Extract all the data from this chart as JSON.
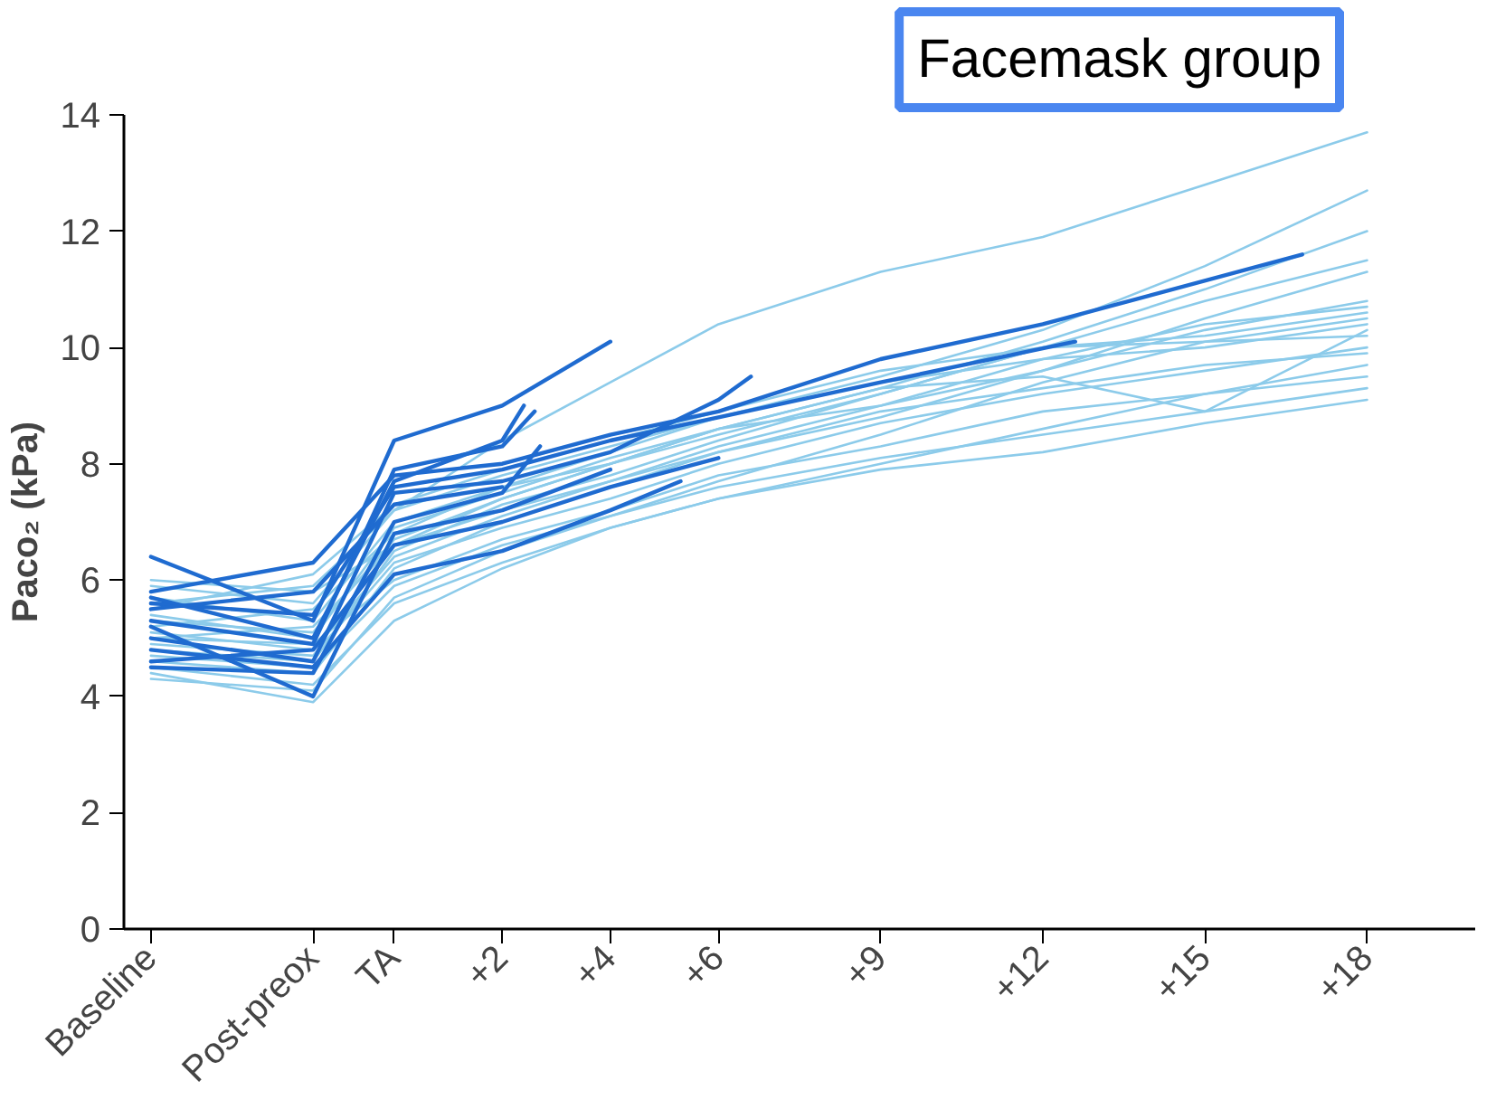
{
  "chart_data": {
    "type": "line",
    "title": "Facemask group",
    "ylabel": "Paco₂ (kPa)",
    "x": [
      -4.5,
      -1.5,
      0,
      2,
      4,
      6,
      9,
      12,
      15,
      18
    ],
    "xlim": [
      -5,
      20
    ],
    "ylim": [
      0,
      14
    ],
    "yticks": [
      0,
      2,
      4,
      6,
      8,
      10,
      12,
      14
    ],
    "xticks": [
      {
        "value": -4.5,
        "label": "Baseline"
      },
      {
        "value": -1.5,
        "label": "Post-preox"
      },
      {
        "value": 0,
        "label": "TA"
      },
      {
        "value": 2,
        "label": "+2"
      },
      {
        "value": 4,
        "label": "+4"
      },
      {
        "value": 6,
        "label": "+6"
      },
      {
        "value": 9,
        "label": "+9"
      },
      {
        "value": 12,
        "label": "+12"
      },
      {
        "value": 15,
        "label": "+15"
      },
      {
        "value": 18,
        "label": "+18"
      }
    ],
    "grid": false,
    "marker": "none",
    "line_style": "solid",
    "series": [
      {
        "color": "#8ccbea",
        "values": [
          5.6,
          5.9,
          7.2,
          8.4,
          9.4,
          10.4,
          11.3,
          11.9,
          12.8,
          13.7
        ]
      },
      {
        "color": "#8ccbea",
        "values": [
          5.2,
          5.5,
          6.8,
          7.6,
          8.2,
          8.8,
          9.5,
          10.3,
          11.4,
          12.7
        ]
      },
      {
        "color": "#8ccbea",
        "values": [
          5.0,
          5.2,
          6.6,
          7.4,
          8.0,
          8.6,
          9.3,
          10.1,
          11.0,
          12.0
        ]
      },
      {
        "color": "#8ccbea",
        "values": [
          4.8,
          4.6,
          6.5,
          7.3,
          7.8,
          8.4,
          9.2,
          10.0,
          10.8,
          11.5
        ]
      },
      {
        "color": "#8ccbea",
        "values": [
          5.4,
          5.0,
          6.9,
          7.5,
          8.1,
          8.6,
          9.0,
          9.6,
          10.5,
          11.3
        ]
      },
      {
        "color": "#8ccbea",
        "values": [
          4.6,
          4.4,
          6.2,
          7.0,
          7.6,
          8.2,
          8.8,
          9.6,
          10.3,
          10.8
        ]
      },
      {
        "color": "#8ccbea",
        "values": [
          5.1,
          4.8,
          6.4,
          7.1,
          7.7,
          8.3,
          9.0,
          9.8,
          10.4,
          10.7
        ]
      },
      {
        "color": "#8ccbea",
        "values": [
          5.7,
          5.3,
          7.0,
          7.6,
          8.0,
          8.5,
          9.2,
          10.0,
          10.2,
          10.6
        ]
      },
      {
        "color": "#8ccbea",
        "values": [
          4.3,
          4.1,
          5.7,
          6.5,
          7.1,
          7.7,
          8.5,
          9.4,
          10.1,
          10.5
        ]
      },
      {
        "color": "#8ccbea",
        "values": [
          5.9,
          5.6,
          7.2,
          7.8,
          8.3,
          8.8,
          9.4,
          9.8,
          10.0,
          10.4
        ]
      },
      {
        "color": "#8ccbea",
        "values": [
          5.3,
          5.1,
          6.7,
          7.4,
          8.0,
          8.6,
          9.3,
          9.5,
          8.9,
          10.3
        ]
      },
      {
        "color": "#8ccbea",
        "values": [
          4.9,
          4.7,
          6.3,
          6.9,
          7.4,
          8.0,
          8.7,
          9.2,
          9.6,
          10.0
        ]
      },
      {
        "color": "#8ccbea",
        "values": [
          4.4,
          3.9,
          5.3,
          6.2,
          6.9,
          7.4,
          8.0,
          8.6,
          9.2,
          9.7
        ]
      },
      {
        "color": "#8ccbea",
        "values": [
          5.0,
          4.9,
          6.0,
          6.7,
          7.2,
          7.8,
          8.3,
          8.9,
          9.2,
          9.5
        ]
      },
      {
        "color": "#8ccbea",
        "values": [
          4.7,
          4.5,
          5.9,
          6.6,
          7.1,
          7.6,
          8.1,
          8.5,
          8.9,
          9.3
        ]
      },
      {
        "color": "#8ccbea",
        "values": [
          4.5,
          4.2,
          5.6,
          6.3,
          6.9,
          7.4,
          7.9,
          8.2,
          8.7,
          9.1
        ]
      },
      {
        "color": "#8ccbea",
        "values": [
          5.5,
          6.1,
          7.3,
          7.9,
          8.4,
          8.9,
          9.6,
          10.0,
          10.1,
          10.2
        ]
      },
      {
        "color": "#8ccbea",
        "values": [
          6.0,
          5.8,
          6.6,
          7.2,
          7.7,
          8.2,
          8.9,
          9.3,
          9.7,
          9.9
        ]
      },
      {
        "color": "#1f6bd0",
        "x": [
          -4.5,
          -1.5,
          0,
          2,
          4
        ],
        "values": [
          6.4,
          5.3,
          8.4,
          9.0,
          10.1
        ]
      },
      {
        "color": "#1f6bd0",
        "x": [
          -4.5,
          -1.5,
          0,
          2,
          4,
          6,
          9,
          12.6
        ],
        "values": [
          5.6,
          5.4,
          7.6,
          7.9,
          8.4,
          8.8,
          9.4,
          10.1
        ]
      },
      {
        "color": "#1f6bd0",
        "x": [
          -4.5,
          -1.5,
          0,
          2,
          4,
          6,
          9,
          12,
          16.8
        ],
        "values": [
          5.8,
          6.3,
          7.8,
          8.0,
          8.5,
          8.9,
          9.8,
          10.4,
          11.6
        ]
      },
      {
        "color": "#1f6bd0",
        "x": [
          -4.5,
          -1.5,
          0,
          2,
          4,
          6,
          6.6
        ],
        "values": [
          5.0,
          4.6,
          7.5,
          7.7,
          8.2,
          9.1,
          9.5
        ]
      },
      {
        "color": "#1f6bd0",
        "x": [
          -4.5,
          -1.5,
          0,
          2,
          4,
          5.3
        ],
        "values": [
          4.8,
          4.5,
          6.1,
          6.5,
          7.2,
          7.7
        ]
      },
      {
        "color": "#1f6bd0",
        "x": [
          -4.5,
          -1.5,
          0,
          2,
          2.6
        ],
        "values": [
          5.3,
          4.9,
          7.9,
          8.3,
          8.9
        ]
      },
      {
        "color": "#1f6bd0",
        "x": [
          -4.5,
          -1.5,
          0,
          2,
          2.4
        ],
        "values": [
          5.7,
          5.0,
          7.7,
          8.4,
          9.0
        ]
      },
      {
        "color": "#1f6bd0",
        "x": [
          -4.5,
          -1.5,
          0,
          2,
          2.7
        ],
        "values": [
          4.5,
          4.4,
          7.0,
          7.5,
          8.3
        ]
      },
      {
        "color": "#1f6bd0",
        "x": [
          -4.5,
          -1.5,
          0,
          2,
          4
        ],
        "values": [
          5.2,
          4.0,
          6.8,
          7.2,
          7.9
        ]
      },
      {
        "color": "#1f6bd0",
        "x": [
          -4.5,
          -1.5,
          0,
          2,
          4,
          6
        ],
        "values": [
          4.6,
          4.8,
          6.6,
          7.0,
          7.6,
          8.1
        ]
      },
      {
        "color": "#1f6bd0",
        "x": [
          -4.5,
          -1.5,
          0,
          2
        ],
        "values": [
          5.5,
          5.8,
          7.3,
          7.6
        ]
      }
    ]
  }
}
